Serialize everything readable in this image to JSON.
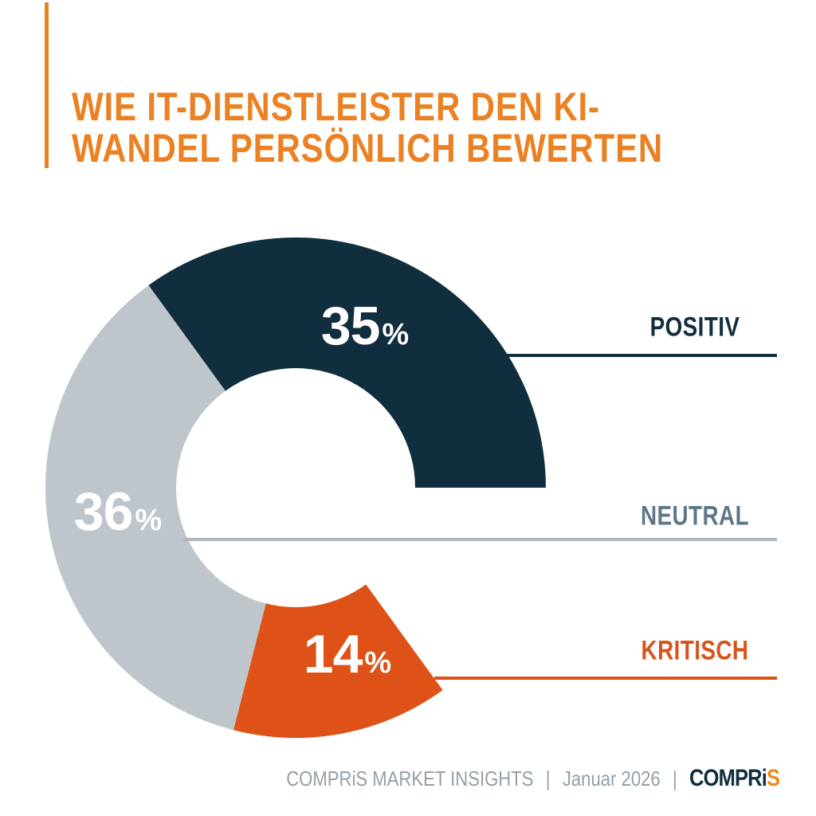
{
  "colors": {
    "navy": "#112E3E",
    "gray": "#BFC6CB",
    "orange": "#DE5117",
    "orange-text": "#D8541C",
    "title-orange": "#EB8122",
    "neutral-text": "#5E7889",
    "neutral-line": "#AEB8BE",
    "footer-gray": "#92A0A9",
    "logo-s-orange": "#EC8A20"
  },
  "title": {
    "line1": "WIE IT-DIENSTLEISTER DEN KI-",
    "line2": "WANDEL PERSÖNLICH BEWERTEN"
  },
  "chart_data": {
    "type": "pie",
    "variant": "donut",
    "title": "Wie IT-Dienstleister den KI-Wandel persönlich bewerten",
    "unit": "%",
    "start_angle_deg": -36,
    "legend_position": "right",
    "segments": [
      {
        "label": "POSITIV",
        "value": 35,
        "color": "#112E3E",
        "gap": false
      },
      {
        "label": "",
        "value": 15,
        "color": "none",
        "gap": true
      },
      {
        "label": "KRITISCH",
        "value": 14,
        "color": "#DE5117",
        "gap": false
      },
      {
        "label": "NEUTRAL",
        "value": 36,
        "color": "#BFC6CB",
        "gap": false
      }
    ]
  },
  "footer": {
    "brand_line": "COMPRiS MARKET INSIGHTS",
    "separator": "|",
    "date": "Januar 2026",
    "logo": {
      "part1": "COMPRi",
      "part2": "S"
    }
  }
}
